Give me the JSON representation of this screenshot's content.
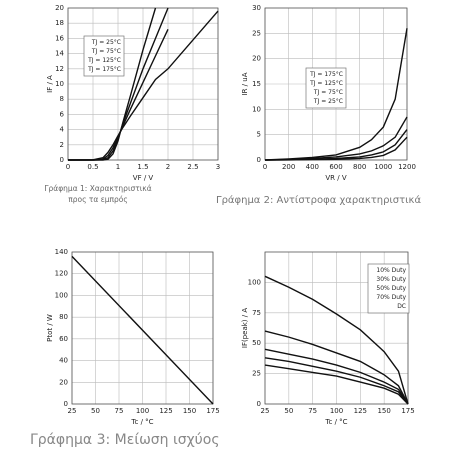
{
  "chart_data": [
    {
      "type": "line",
      "x_label": "VF / V",
      "y_label": "IF / A",
      "caption": [
        "Γράφημα 1: Χαρακτηριστικά",
        "προς τα εμπρός"
      ],
      "x": [
        0,
        0.5,
        0.7,
        0.8,
        0.9,
        1.0,
        1.1,
        1.25,
        1.5,
        1.75,
        2,
        2.5,
        3
      ],
      "xlim": [
        0,
        3
      ],
      "xticks": [
        0,
        0.5,
        1,
        1.5,
        2,
        2.5,
        3
      ],
      "ylim": [
        0,
        20
      ],
      "yticks": [
        0,
        2,
        4,
        6,
        8,
        10,
        12,
        14,
        16,
        18,
        20
      ],
      "grid": true,
      "series": [
        {
          "name": "TJ = 25°C",
          "color": "#111111",
          "values": [
            0,
            0,
            0,
            0.1,
            0.8,
            2.5,
            5,
            8.5,
            14.5,
            20,
            null,
            null,
            null
          ]
        },
        {
          "name": "TJ = 75°C",
          "color": "#111111",
          "values": [
            0,
            0,
            0.05,
            0.3,
            1.2,
            2.8,
            4.8,
            7.5,
            12,
            16,
            20,
            null,
            null
          ]
        },
        {
          "name": "TJ = 125°C",
          "color": "#111111",
          "values": [
            0,
            0,
            0.1,
            0.6,
            1.6,
            3,
            4.5,
            6.7,
            10.2,
            13.7,
            17.2,
            null,
            null
          ]
        },
        {
          "name": "TJ = 175°C",
          "color": "#111111",
          "values": [
            0,
            0.02,
            0.3,
            1,
            2,
            3.2,
            4.3,
            5.8,
            8.2,
            10.6,
            12,
            15.8,
            19.6
          ]
        }
      ]
    },
    {
      "type": "line",
      "x_label": "VR / V",
      "y_label": "IR / uA",
      "caption": [
        "Γράφημα 2: Αντίστροφα χαρακτηριστικά"
      ],
      "x": [
        0,
        200,
        400,
        600,
        800,
        900,
        1000,
        1100,
        1200
      ],
      "xlim": [
        0,
        1200
      ],
      "xticks": [
        0,
        200,
        400,
        600,
        800,
        1000,
        1200
      ],
      "ylim": [
        0,
        30
      ],
      "yticks": [
        0,
        5,
        10,
        15,
        20,
        25,
        30
      ],
      "grid": true,
      "series": [
        {
          "name": "TJ = 175°C",
          "color": "#111111",
          "values": [
            0,
            0.2,
            0.5,
            1,
            2.5,
            4,
            6.5,
            12,
            26
          ]
        },
        {
          "name": "TJ = 125°C",
          "color": "#111111",
          "values": [
            0,
            0.1,
            0.3,
            0.6,
            1.2,
            1.8,
            2.8,
            4.5,
            8.5
          ]
        },
        {
          "name": "TJ = 75°C",
          "color": "#111111",
          "values": [
            0,
            0.05,
            0.15,
            0.3,
            0.6,
            1,
            1.6,
            3,
            6
          ]
        },
        {
          "name": "TJ = 25°C",
          "color": "#111111",
          "values": [
            0,
            0.02,
            0.08,
            0.15,
            0.3,
            0.5,
            0.9,
            2,
            4.5
          ]
        }
      ]
    },
    {
      "type": "line",
      "x_label": "Tc / °C",
      "y_label": "Ptot / W",
      "caption": [
        "Γράφημα 3: Μείωση ισχύος"
      ],
      "x": [
        25,
        175
      ],
      "values": [
        136,
        0
      ],
      "color": "#111111",
      "xlim": [
        25,
        175
      ],
      "xticks": [
        25,
        50,
        75,
        100,
        125,
        150,
        175
      ],
      "ylim": [
        0,
        140
      ],
      "yticks": [
        0,
        20,
        40,
        60,
        80,
        100,
        120,
        140
      ],
      "grid": true
    },
    {
      "type": "line",
      "x_label": "Tc / °C",
      "y_label": "IF(peak) / A",
      "x": [
        25,
        50,
        75,
        100,
        125,
        150,
        165,
        175
      ],
      "xlim": [
        25,
        175
      ],
      "xticks": [
        25,
        50,
        75,
        100,
        125,
        150,
        175
      ],
      "ylim": [
        0,
        125
      ],
      "yticks": [
        0,
        25,
        50,
        75,
        100
      ],
      "grid": true,
      "series": [
        {
          "name": "10% Duty",
          "color": "#111111",
          "values": [
            105,
            96,
            86,
            74,
            61,
            43,
            27,
            0
          ]
        },
        {
          "name": "30% Duty",
          "color": "#111111",
          "values": [
            60,
            55,
            49,
            42,
            35,
            24,
            15,
            0
          ]
        },
        {
          "name": "50% Duty",
          "color": "#111111",
          "values": [
            45,
            41,
            37,
            32,
            26,
            18,
            12,
            0
          ]
        },
        {
          "name": "70% Duty",
          "color": "#111111",
          "values": [
            38,
            35,
            31,
            27,
            22,
            15,
            10,
            0
          ]
        },
        {
          "name": "DC",
          "color": "#111111",
          "values": [
            32,
            29,
            26,
            23,
            18,
            13,
            8,
            0
          ]
        }
      ]
    }
  ]
}
